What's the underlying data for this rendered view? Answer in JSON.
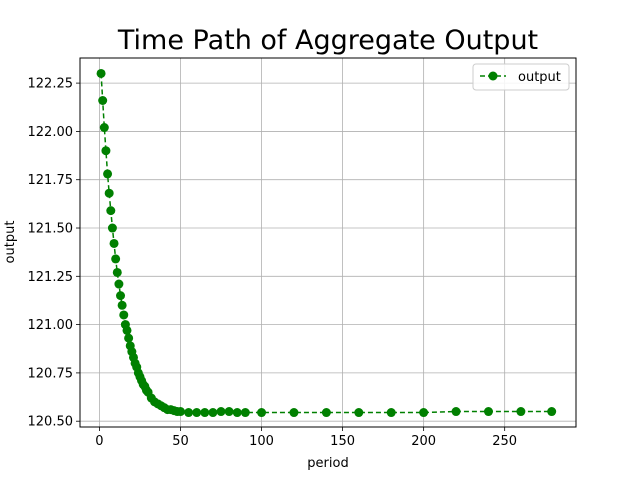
{
  "chart_data": {
    "type": "line",
    "title": "Time Path of Aggregate Output",
    "xlabel": "period",
    "ylabel": "output",
    "xlim": [
      -12,
      294
    ],
    "ylim": [
      120.47,
      122.38
    ],
    "xticks": [
      0,
      50,
      100,
      150,
      200,
      250
    ],
    "yticks": [
      120.5,
      120.75,
      121.0,
      121.25,
      121.5,
      121.75,
      122.0,
      122.25
    ],
    "xtick_labels": [
      "0",
      "50",
      "100",
      "150",
      "200",
      "250"
    ],
    "ytick_labels": [
      "120.50",
      "120.75",
      "121.00",
      "121.25",
      "121.50",
      "121.75",
      "122.00",
      "122.25"
    ],
    "grid": true,
    "legend": "upper right",
    "series": [
      {
        "name": "output",
        "color": "#008000",
        "linestyle": "dashed",
        "marker": "circle",
        "x": [
          1,
          2,
          3,
          4,
          5,
          6,
          7,
          8,
          9,
          10,
          11,
          12,
          13,
          14,
          15,
          16,
          17,
          18,
          19,
          20,
          21,
          22,
          23,
          24,
          25,
          26,
          27,
          28,
          29,
          30,
          32,
          34,
          36,
          38,
          40,
          42,
          44,
          46,
          48,
          50,
          55,
          60,
          65,
          70,
          75,
          80,
          85,
          90,
          100,
          120,
          140,
          160,
          180,
          200,
          220,
          240,
          260,
          279
        ],
        "y": [
          122.3,
          122.16,
          122.02,
          121.9,
          121.78,
          121.68,
          121.59,
          121.5,
          121.42,
          121.34,
          121.27,
          121.21,
          121.15,
          121.1,
          121.05,
          121.0,
          120.97,
          120.93,
          120.89,
          120.86,
          120.83,
          120.8,
          120.78,
          120.75,
          120.73,
          120.71,
          120.69,
          120.68,
          120.66,
          120.65,
          120.62,
          120.6,
          120.59,
          120.58,
          120.57,
          120.56,
          120.56,
          120.555,
          120.55,
          120.55,
          120.545,
          120.545,
          120.545,
          120.545,
          120.55,
          120.55,
          120.545,
          120.545,
          120.545,
          120.545,
          120.545,
          120.545,
          120.545,
          120.545,
          120.55,
          120.55,
          120.55,
          120.55
        ]
      }
    ]
  }
}
